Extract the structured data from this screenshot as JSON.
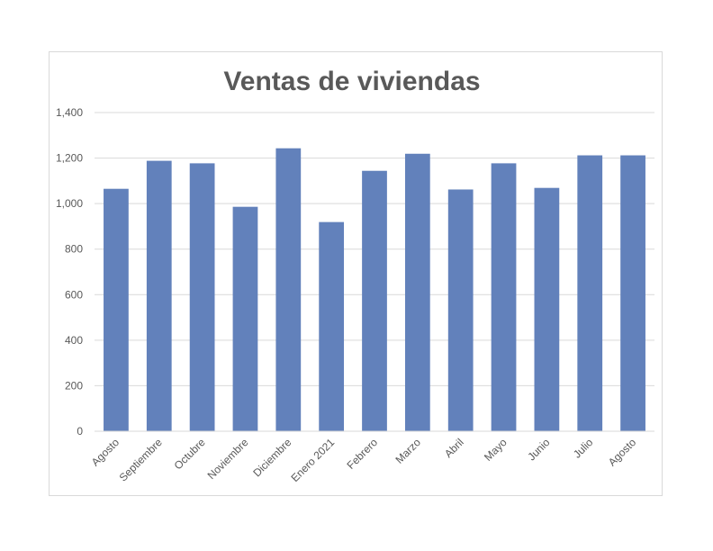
{
  "chart_data": {
    "type": "bar",
    "title": "Ventas de viviendas",
    "xlabel": "",
    "ylabel": "",
    "categories": [
      "Agosto",
      "Septiembre",
      "Octubre",
      "Noviembre",
      "Diciembre",
      "Enero 2021",
      "Febrero",
      "Marzo",
      "Abril",
      "Mayo",
      "Junio",
      "Julio",
      "Agosto"
    ],
    "values": [
      1065,
      1188,
      1177,
      986,
      1243,
      919,
      1144,
      1219,
      1062,
      1177,
      1069,
      1212,
      1212
    ],
    "ylim": [
      0,
      1400
    ],
    "yticks": [
      0,
      200,
      400,
      600,
      800,
      1000,
      1200,
      1400
    ],
    "ytick_labels": [
      "0",
      "200",
      "400",
      "600",
      "800",
      "1,000",
      "1,200",
      "1,400"
    ],
    "grid": true,
    "legend": "none",
    "bar_color": "#6281bb"
  }
}
